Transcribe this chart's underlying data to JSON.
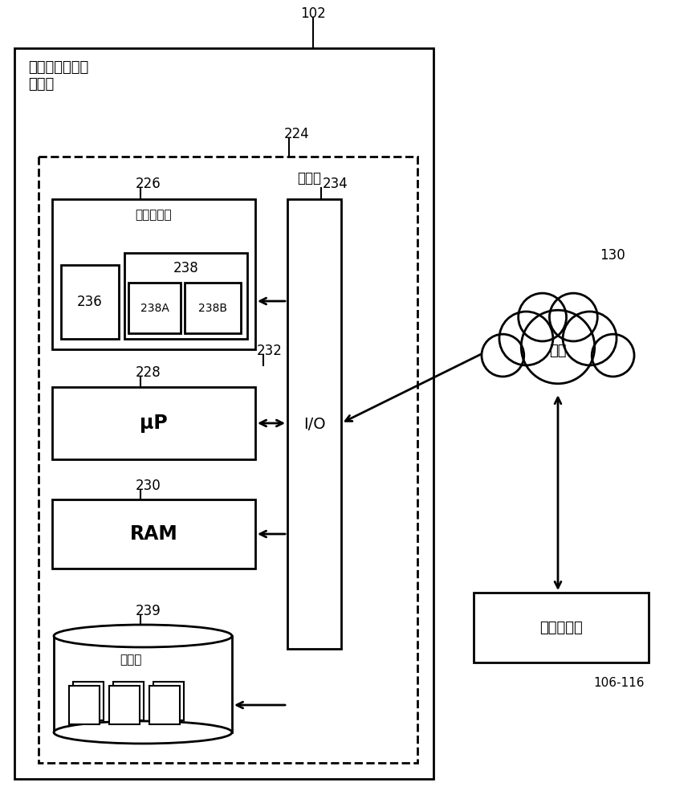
{
  "bg_color": "#ffffff",
  "text_color": "#000000",
  "label_102": "102",
  "label_224": "224",
  "label_226": "226",
  "label_228": "228",
  "label_230": "230",
  "label_232": "232",
  "label_234": "234",
  "label_236": "236",
  "label_238": "238",
  "label_238A": "238A",
  "label_238B": "238B",
  "label_239": "239",
  "label_130": "130",
  "label_106_116": "106-116",
  "text_server": "药物和剂量决策\n服务器",
  "text_controller": "控制器",
  "text_program_store": "程序存储器",
  "text_uP": "μP",
  "text_RAM": "RAM",
  "text_IO": "I/O",
  "text_database": "数据库",
  "text_network": "网络",
  "text_client": "客户端装置"
}
